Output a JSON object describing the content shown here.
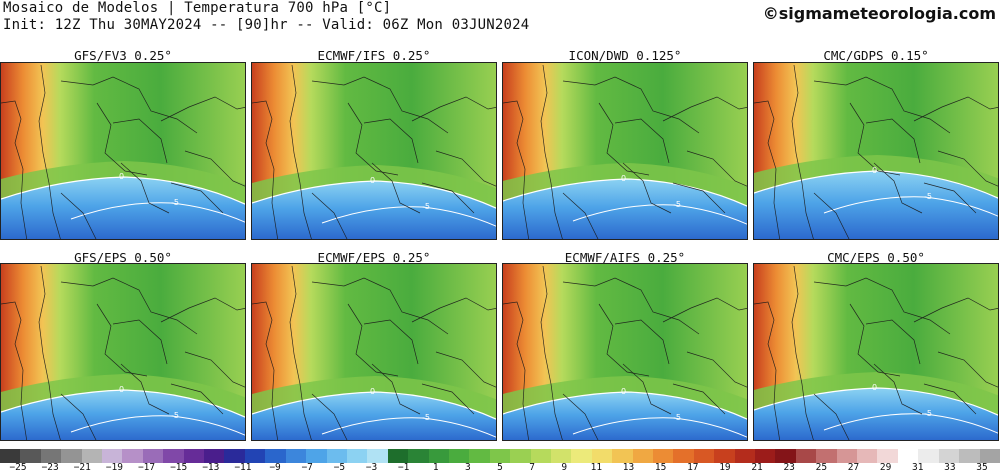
{
  "header": {
    "line1": "Mosaico de Modelos | Temperatura 700 hPa [°C]",
    "line2": "Init: 12Z Thu 30MAY2024 -- [90]hr -- Valid: 06Z Mon 03JUN2024",
    "brand": "©sigmameteorologia.com"
  },
  "panels": [
    {
      "title": "GFS/FV3 0.25°"
    },
    {
      "title": "ECMWF/IFS 0.25°"
    },
    {
      "title": "ICON/DWD 0.125°"
    },
    {
      "title": "CMC/GDPS 0.15°"
    },
    {
      "title": "GFS/EPS 0.50°"
    },
    {
      "title": "ECMWF/EPS 0.25°"
    },
    {
      "title": "ECMWF/AIFS 0.25°"
    },
    {
      "title": "CMC/EPS 0.50°"
    }
  ],
  "contour_labels": [
    "0",
    "-5"
  ],
  "colorbar": {
    "ticks": [
      "−25",
      "−23",
      "−21",
      "−19",
      "−17",
      "−15",
      "−13",
      "−11",
      "−9",
      "−7",
      "−5",
      "−3",
      "−1",
      "1",
      "3",
      "5",
      "7",
      "9",
      "11",
      "13",
      "15",
      "17",
      "19",
      "21",
      "23",
      "25",
      "27",
      "29",
      "31",
      "33",
      "35"
    ],
    "colors": [
      "#3a3a3a",
      "#585858",
      "#767676",
      "#949494",
      "#b4b4b4",
      "#c8b4d8",
      "#b690c8",
      "#9a6cb8",
      "#8048a8",
      "#662c98",
      "#4a1e8c",
      "#2a2a9a",
      "#2244b4",
      "#2a66cc",
      "#3c86dc",
      "#4ea4e8",
      "#6cbcee",
      "#8cd2f2",
      "#b0e2f4",
      "#1e6e2c",
      "#2a8436",
      "#389a3c",
      "#4aac3e",
      "#62ba42",
      "#7ec64a",
      "#9ad052",
      "#b6da5c",
      "#d2e26a",
      "#ecea7a",
      "#f2dc6a",
      "#f2c454",
      "#f0a842",
      "#ec8c34",
      "#e4702a",
      "#d85824",
      "#c8401e",
      "#b42c1c",
      "#9c1c1a",
      "#841418",
      "#a84848",
      "#c27070",
      "#d69696",
      "#e6b8b8",
      "#f2d8d8",
      "#ffffff",
      "#ececec",
      "#d4d4d4",
      "#bcbcbc",
      "#a4a4a4"
    ]
  }
}
